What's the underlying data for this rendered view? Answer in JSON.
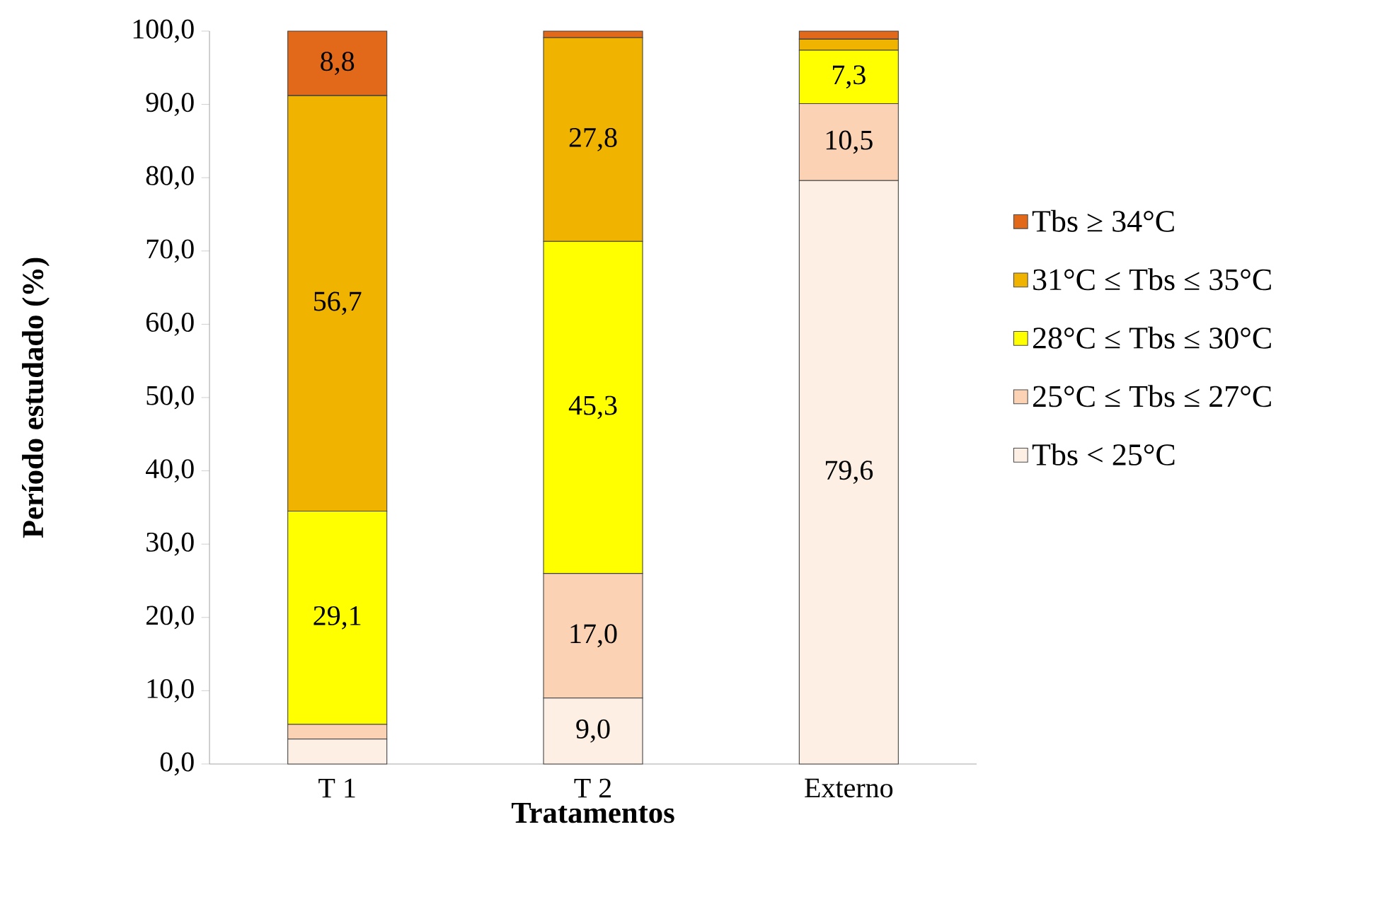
{
  "chart_data": {
    "type": "bar",
    "stacked": true,
    "xlabel": "Tratamentos",
    "ylabel": "Período estudado (%)",
    "categories": [
      "T 1",
      "T 2",
      "Externo"
    ],
    "series": [
      {
        "name": "Tbs < 25°C",
        "color": "#fdefe4",
        "values": [
          3.4,
          9.0,
          79.6
        ],
        "value_labels": [
          null,
          "9,0",
          "79,6"
        ]
      },
      {
        "name": "25°C ≤ Tbs ≤ 27°C",
        "color": "#fbd3b4",
        "values": [
          2.0,
          17.0,
          10.5
        ],
        "value_labels": [
          null,
          "17,0",
          "10,5"
        ]
      },
      {
        "name": "28°C ≤ Tbs ≤ 30°C",
        "color": "#ffff00",
        "values": [
          29.1,
          45.3,
          7.3
        ],
        "value_labels": [
          "29,1",
          "45,3",
          "7,3"
        ]
      },
      {
        "name": "31°C ≤ Tbs ≤ 35°C",
        "color": "#f0b400",
        "values": [
          56.7,
          27.8,
          1.5
        ],
        "value_labels": [
          "56,7",
          "27,8",
          null
        ]
      },
      {
        "name": "Tbs ≥ 34°C",
        "color": "#e2691a",
        "values": [
          8.8,
          0.9,
          1.1
        ],
        "value_labels": [
          "8,8",
          null,
          null
        ]
      }
    ],
    "ylim": [
      0,
      100
    ],
    "yticks": [
      {
        "value": 0,
        "label": "0,0"
      },
      {
        "value": 10,
        "label": "10,0"
      },
      {
        "value": 20,
        "label": "20,0"
      },
      {
        "value": 30,
        "label": "30,0"
      },
      {
        "value": 40,
        "label": "40,0"
      },
      {
        "value": 50,
        "label": "50,0"
      },
      {
        "value": 60,
        "label": "60,0"
      },
      {
        "value": 70,
        "label": "70,0"
      },
      {
        "value": 80,
        "label": "80,0"
      },
      {
        "value": 90,
        "label": "90,0"
      },
      {
        "value": 100,
        "label": "100,0"
      }
    ],
    "grid": false,
    "legend": "right"
  }
}
